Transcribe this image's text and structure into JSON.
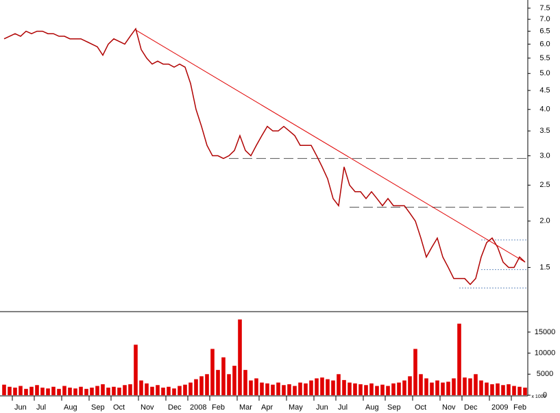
{
  "chart_data": [
    {
      "type": "line",
      "log_scale": true,
      "color": "#b00000",
      "categories": [
        null,
        null,
        "Jun",
        null,
        null,
        null,
        "Jul",
        null,
        null,
        null,
        null,
        "Aug",
        null,
        null,
        null,
        null,
        "Sep",
        null,
        null,
        null,
        "Oct",
        null,
        null,
        null,
        null,
        "Nov",
        null,
        null,
        null,
        null,
        "Dec",
        null,
        null,
        null,
        "2008",
        null,
        null,
        null,
        "Feb",
        null,
        null,
        null,
        null,
        "Mar",
        null,
        null,
        null,
        "Apr",
        null,
        null,
        null,
        null,
        "May",
        null,
        null,
        null,
        null,
        "Jun",
        null,
        null,
        null,
        "Jul",
        null,
        null,
        null,
        null,
        "Aug",
        null,
        null,
        null,
        "Sep",
        null,
        null,
        null,
        null,
        "Oct",
        null,
        null,
        null,
        null,
        "Nov",
        null,
        null,
        null,
        "Dec",
        null,
        null,
        null,
        null,
        "2009",
        null,
        null,
        null,
        "Feb",
        null,
        null
      ],
      "values": [
        6.2,
        6.3,
        6.4,
        6.3,
        6.5,
        6.4,
        6.5,
        6.5,
        6.4,
        6.4,
        6.3,
        6.3,
        6.2,
        6.2,
        6.2,
        6.1,
        6.0,
        5.9,
        5.6,
        6.0,
        6.2,
        6.1,
        6.0,
        6.3,
        6.6,
        5.8,
        5.5,
        5.3,
        5.4,
        5.3,
        5.3,
        5.2,
        5.3,
        5.2,
        4.7,
        4.0,
        3.6,
        3.2,
        3.0,
        3.0,
        2.95,
        3.0,
        3.1,
        3.4,
        3.1,
        3.0,
        3.2,
        3.4,
        3.6,
        3.5,
        3.5,
        3.6,
        3.5,
        3.4,
        3.2,
        3.2,
        3.2,
        3.0,
        2.8,
        2.6,
        2.3,
        2.2,
        2.8,
        2.5,
        2.4,
        2.4,
        2.3,
        2.4,
        2.3,
        2.2,
        2.3,
        2.2,
        2.2,
        2.2,
        2.1,
        2.0,
        1.8,
        1.6,
        1.7,
        1.8,
        1.6,
        1.5,
        1.4,
        1.4,
        1.4,
        1.35,
        1.4,
        1.6,
        1.75,
        1.8,
        1.7,
        1.55,
        1.5,
        1.5,
        1.6,
        1.55
      ],
      "ylim": [
        1.14,
        7.89
      ],
      "yticks": [
        {
          "value": 1.5,
          "label": "1.5"
        },
        {
          "value": 2,
          "label": "2.0"
        },
        {
          "value": 2.5,
          "label": "2.5"
        },
        {
          "value": 3,
          "label": "3.0"
        },
        {
          "value": 3.5,
          "label": "3.5"
        },
        {
          "value": 4,
          "label": "4.0"
        },
        {
          "value": 4.5,
          "label": "4.5"
        },
        {
          "value": 5,
          "label": "5.0"
        },
        {
          "value": 5.5,
          "label": "5.5"
        },
        {
          "value": 6,
          "label": "6.0"
        },
        {
          "value": 6.5,
          "label": "6.5"
        },
        {
          "value": 7,
          "label": "7.0"
        },
        {
          "value": 7.5,
          "label": "7.5"
        }
      ],
      "trend_lines": [
        {
          "start": 24,
          "end": 95,
          "values": [
            6.55,
            1.55
          ],
          "color": "#e00000"
        }
      ],
      "levels": [
        {
          "value": 2.95,
          "start": 41,
          "style": "dashed"
        },
        {
          "value": 2.18,
          "start": 63,
          "style": "dashed"
        },
        {
          "value": 1.78,
          "start": 87,
          "style": "dotted"
        },
        {
          "value": 1.48,
          "start": 87,
          "style": "dotted"
        },
        {
          "value": 1.32,
          "start": 83,
          "style": "dotted"
        }
      ]
    },
    {
      "type": "bar",
      "color": "#e00000",
      "unit_label": "x 1000",
      "values": [
        2500,
        2000,
        1800,
        2200,
        1500,
        2000,
        2400,
        1800,
        1600,
        2000,
        1500,
        2200,
        1800,
        1600,
        2000,
        1500,
        1800,
        2200,
        2600,
        1800,
        2000,
        1800,
        2400,
        2600,
        12000,
        3500,
        2800,
        2000,
        2400,
        1800,
        2000,
        1600,
        2200,
        2500,
        3000,
        3800,
        4500,
        5000,
        11000,
        6000,
        9000,
        5000,
        7000,
        18000,
        6000,
        3500,
        4000,
        3000,
        2800,
        2500,
        3000,
        2400,
        2600,
        2200,
        3000,
        2800,
        3500,
        4000,
        4200,
        3800,
        3500,
        5000,
        3600,
        3000,
        2800,
        2600,
        2400,
        2800,
        2200,
        2500,
        2200,
        2800,
        3000,
        3500,
        4500,
        11000,
        5000,
        4000,
        3000,
        3500,
        3000,
        3200,
        4000,
        17000,
        4200,
        4000,
        5000,
        3500,
        3000,
        2600,
        2800,
        2400,
        2600,
        2200,
        2000,
        1800
      ],
      "ylim": [
        0,
        19700
      ],
      "yticks": [
        0,
        5000,
        10000,
        15000
      ]
    }
  ]
}
